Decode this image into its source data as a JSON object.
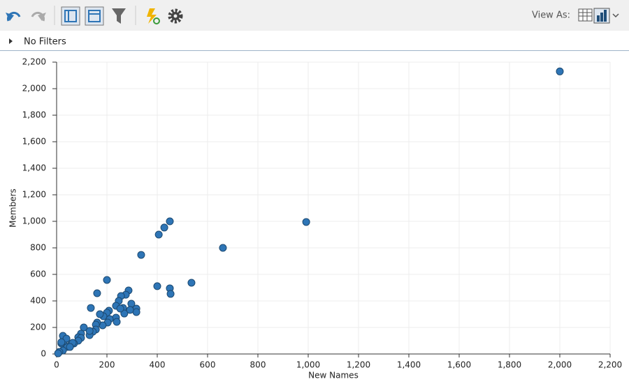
{
  "toolbar": {
    "view_as": "View As:"
  },
  "filter_bar": {
    "label": "No Filters"
  },
  "chart_data": {
    "type": "scatter",
    "x_label": "New Names",
    "y_label": "Members",
    "color": "#2e75b6",
    "x": [
      2000,
      992,
      661,
      536,
      450,
      428,
      406,
      336,
      400,
      450,
      453,
      200,
      161,
      136,
      286,
      275,
      256,
      247,
      236,
      264,
      297,
      317,
      317,
      269,
      292,
      253,
      236,
      239,
      208,
      200,
      186,
      172,
      211,
      203,
      183,
      161,
      156,
      156,
      144,
      131,
      131,
      108,
      97,
      86,
      97,
      86,
      69,
      56,
      42,
      28,
      19,
      25,
      39,
      19,
      25,
      11,
      6,
      64,
      53
    ],
    "values": [
      2130,
      995,
      800,
      537,
      1000,
      953,
      900,
      747,
      511,
      495,
      453,
      558,
      458,
      347,
      479,
      447,
      437,
      400,
      363,
      347,
      379,
      342,
      316,
      305,
      332,
      342,
      274,
      242,
      326,
      311,
      284,
      300,
      263,
      237,
      216,
      237,
      221,
      184,
      168,
      142,
      174,
      200,
      153,
      126,
      121,
      100,
      79,
      68,
      53,
      95,
      79,
      137,
      116,
      89,
      26,
      16,
      5,
      84,
      53
    ],
    "xlim": [
      0,
      2200
    ],
    "ylim": [
      0,
      2200
    ],
    "xticks": [
      0,
      200,
      400,
      600,
      800,
      {
        "value": 1000,
        "label": "1,000"
      },
      {
        "value": 1200,
        "label": "1,200"
      },
      {
        "value": 1400,
        "label": "1,400"
      },
      {
        "value": 1600,
        "label": "1,600"
      },
      {
        "value": 1800,
        "label": "1,800"
      },
      {
        "value": 2000,
        "label": "2,000"
      },
      {
        "value": 2200,
        "label": "2,200"
      }
    ],
    "yticks": [
      0,
      200,
      400,
      600,
      800,
      {
        "value": 1000,
        "label": "1,000"
      },
      {
        "value": 1200,
        "label": "1,200"
      },
      {
        "value": 1400,
        "label": "1,400"
      },
      {
        "value": 1600,
        "label": "1,600"
      },
      {
        "value": 1800,
        "label": "1,800"
      },
      {
        "value": 2000,
        "label": "2,000"
      },
      {
        "value": 2200,
        "label": "2,200"
      }
    ],
    "grid": true
  }
}
